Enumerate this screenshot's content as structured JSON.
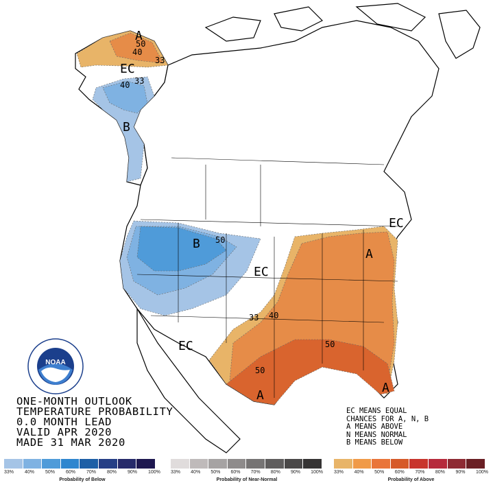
{
  "title_lines": [
    "ONE-MONTH OUTLOOK",
    "TEMPERATURE PROBABILITY",
    "0.0 MONTH LEAD",
    "VALID APR 2020",
    "MADE 31 MAR 2020"
  ],
  "legend_note": [
    "EC MEANS EQUAL",
    "CHANCES FOR A, N, B",
    "A MEANS ABOVE",
    "N MEANS NORMAL",
    "B MEANS BELOW"
  ],
  "map_labels": {
    "alaska_a": "A",
    "alaska_50": "50",
    "alaska_40": "40",
    "alaska_33": "33",
    "alaska_ec": "EC",
    "alaska_b40": "40",
    "alaska_b33": "33",
    "panhandle_b": "B",
    "northwest_b": "B",
    "northwest_50": "50",
    "central_ec": "EC",
    "east_40": "40",
    "east_33": "33",
    "southwest_ec": "EC",
    "southeast_50": "50",
    "texas_50": "50",
    "texas_a": "A",
    "florida_a": "A",
    "atlantic_a": "A",
    "northeast_ec": "EC"
  },
  "logo": {
    "text": "NOAA",
    "ring_text": "NATIONAL OCEANIC AND ATMOSPHERIC ADMINISTRATION",
    "bottom_text": "U.S. DEPARTMENT OF COMMERCE"
  },
  "scales": {
    "below": {
      "label": "Probability of Below",
      "ticks": [
        "33%",
        "40%",
        "50%",
        "60%",
        "70%",
        "80%",
        "90%",
        "100%"
      ],
      "colors": [
        "#a5c4e6",
        "#7fb2e2",
        "#4f9bd9",
        "#2e86cf",
        "#1d5fa6",
        "#253f86",
        "#262a6a",
        "#1e1850"
      ]
    },
    "normal": {
      "label": "Probability of Near-Normal",
      "ticks": [
        "33%",
        "40%",
        "50%",
        "60%",
        "70%",
        "80%",
        "90%",
        "100%"
      ],
      "colors": [
        "#e0dcdc",
        "#bfbaba",
        "#a6a3a3",
        "#8e8b8b",
        "#767474",
        "#5f5d5d",
        "#4a4848",
        "#353333"
      ]
    },
    "above": {
      "label": "Probability of Above",
      "ticks": [
        "33%",
        "40%",
        "50%",
        "60%",
        "70%",
        "80%",
        "90%",
        "100%"
      ],
      "colors": [
        "#e8b468",
        "#f09a48",
        "#e9753a",
        "#d65a29",
        "#c8342c",
        "#b62a3c",
        "#8e2a33",
        "#6a1f24"
      ]
    }
  },
  "colors": {
    "above_33": "#e8b468",
    "above_40": "#e68c48",
    "above_50": "#d9642e",
    "below_33": "#a5c4e6",
    "below_40": "#7fb2e2",
    "below_50": "#4f9bd9"
  }
}
